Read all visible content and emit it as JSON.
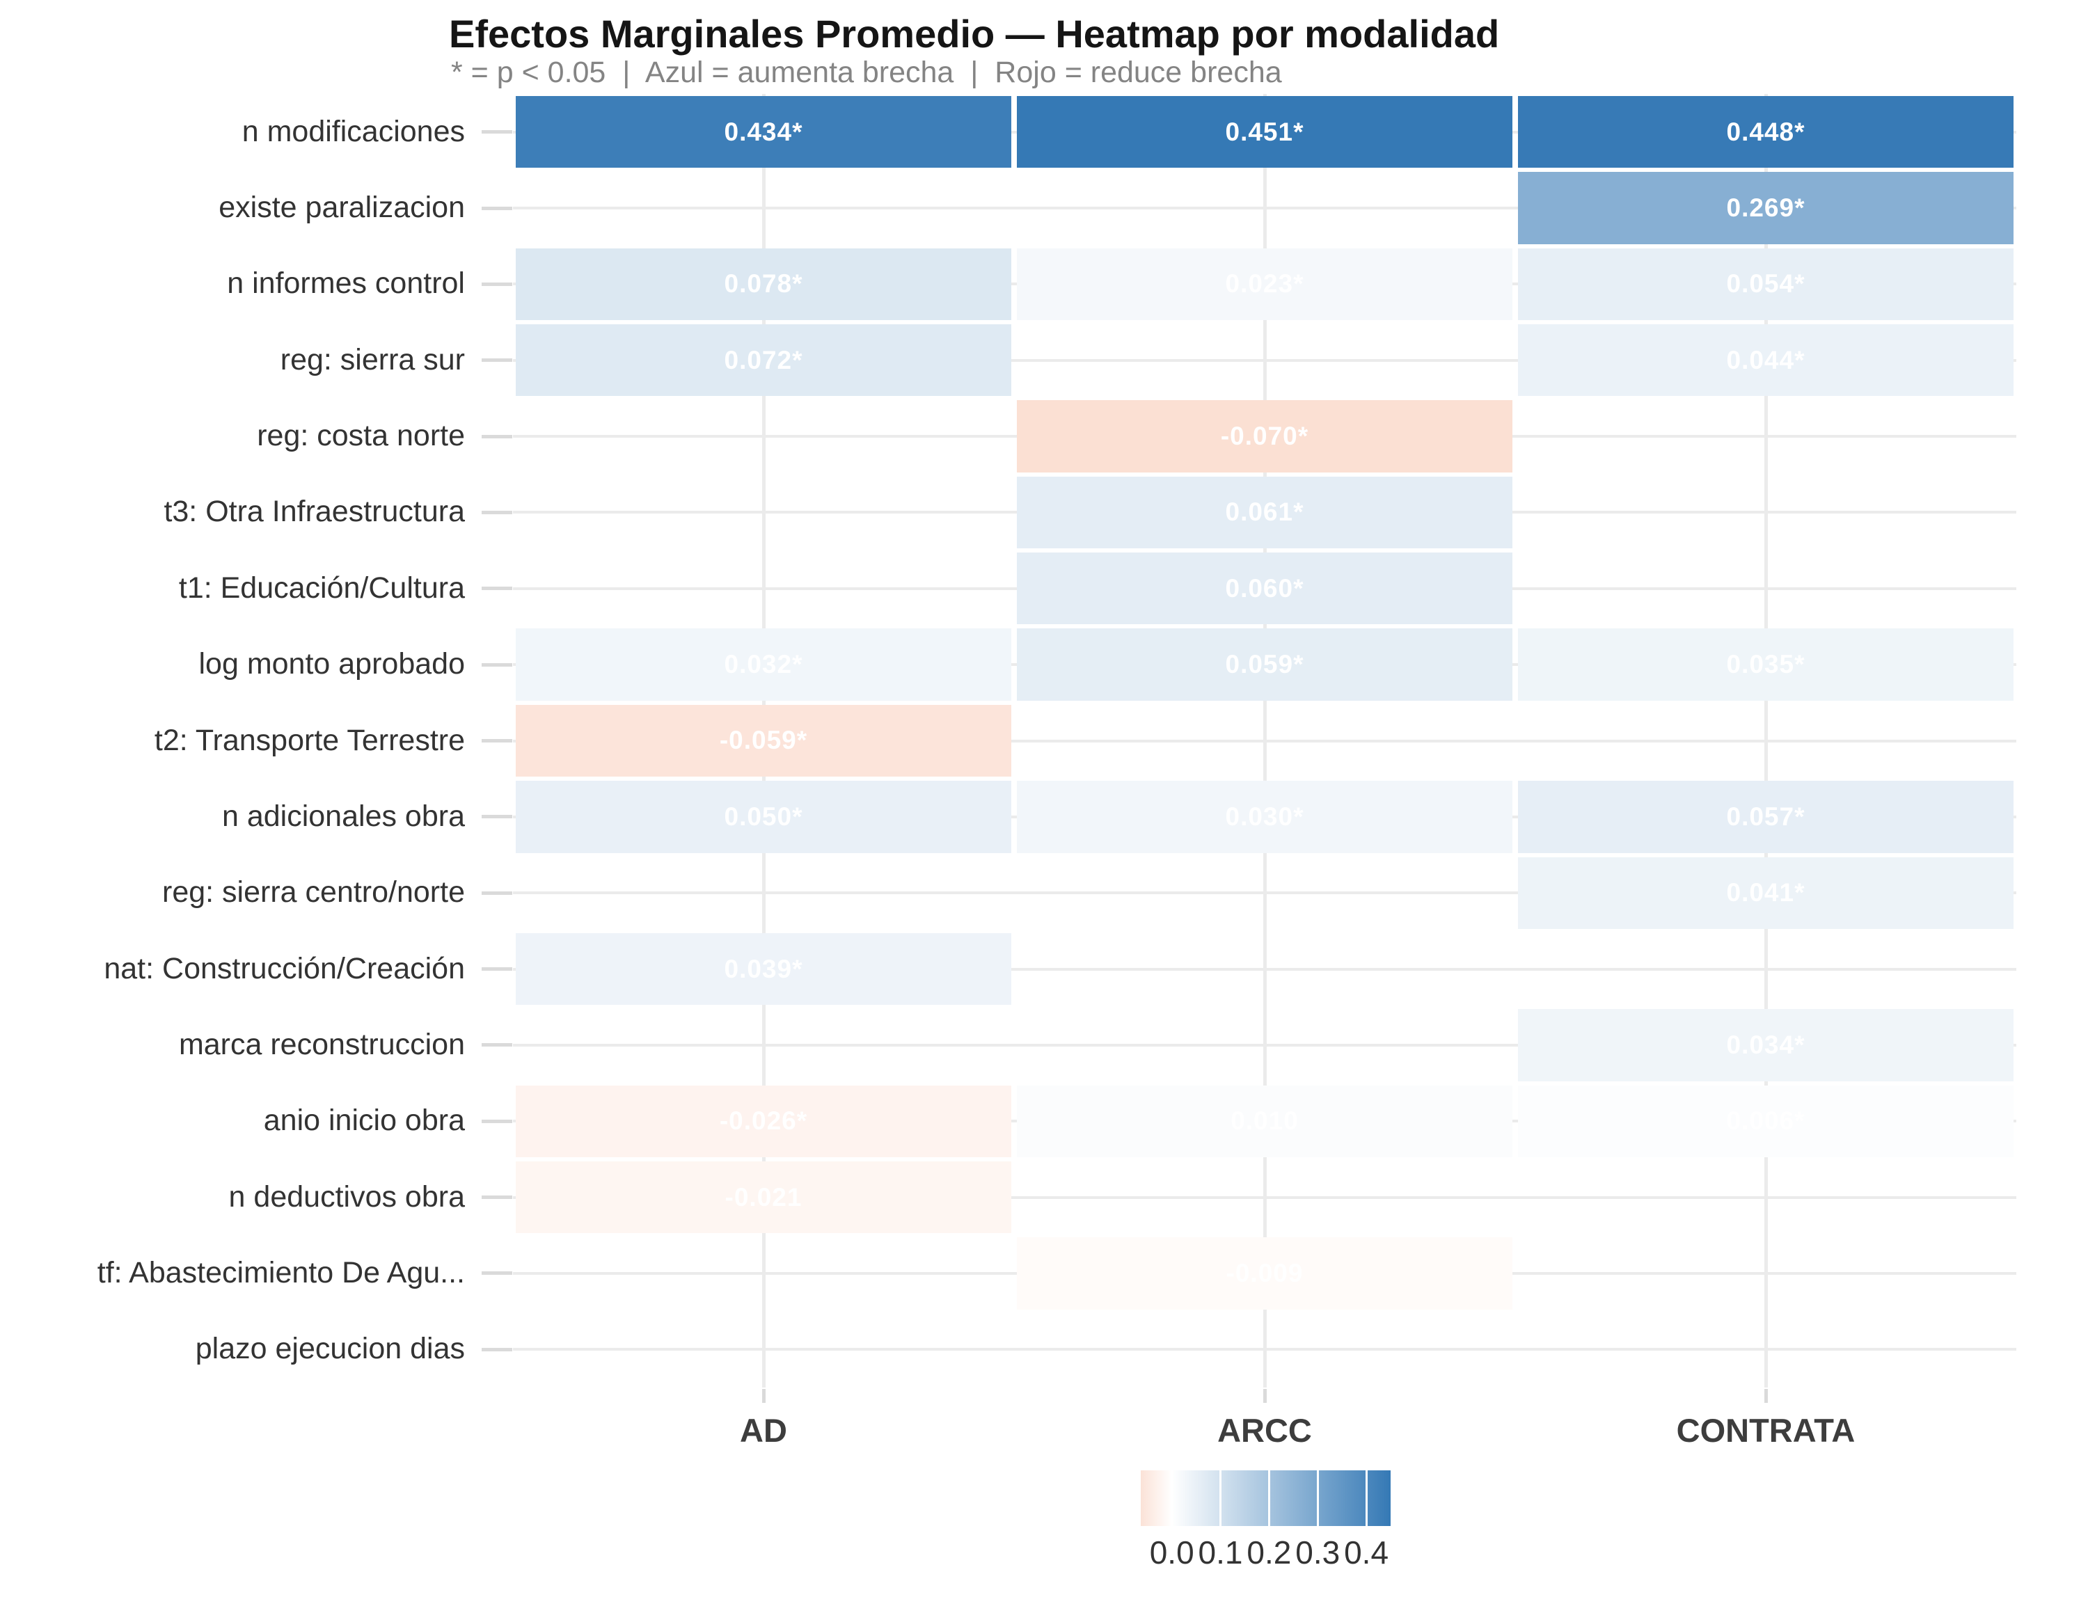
{
  "title": "Efectos Marginales Promedio — Heatmap por modalidad",
  "subtitle": "* = p < 0.05  |  Azul = aumenta brecha  |  Rojo = reduce brecha",
  "chart_data": {
    "type": "heatmap",
    "title": "Efectos Marginales Promedio — Heatmap por modalidad",
    "subtitle": "* = p < 0.05 | Azul = aumenta brecha | Rojo = reduce brecha",
    "x_categories": [
      "AD",
      "ARCC",
      "CONTRATA"
    ],
    "y_categories": [
      "n modificaciones",
      "existe paralizacion",
      "n informes control",
      "reg: sierra sur",
      "reg: costa norte",
      "t3: Otra Infraestructura",
      "t1: Educación/Cultura",
      "log monto aprobado",
      "t2: Transporte Terrestre",
      "n adicionales obra",
      "reg: sierra centro/norte",
      "nat: Construcción/Creación",
      "marca reconstruccion",
      "anio inicio obra",
      "n deductivos obra",
      "tf: Abastecimiento De Agu...",
      "plazo ejecucion dias"
    ],
    "rows": [
      {
        "label": "n modificaciones",
        "cells": [
          {
            "text": "0.434*",
            "v": 0.434
          },
          {
            "text": "0.451*",
            "v": 0.451
          },
          {
            "text": "0.448*",
            "v": 0.448
          }
        ]
      },
      {
        "label": "existe paralizacion",
        "cells": [
          null,
          null,
          {
            "text": "0.269*",
            "v": 0.269
          }
        ]
      },
      {
        "label": "n informes control",
        "cells": [
          {
            "text": "0.078*",
            "v": 0.078
          },
          {
            "text": "0.023*",
            "v": 0.023
          },
          {
            "text": "0.054*",
            "v": 0.054
          }
        ]
      },
      {
        "label": "reg: sierra sur",
        "cells": [
          {
            "text": "0.072*",
            "v": 0.072
          },
          null,
          {
            "text": "0.044*",
            "v": 0.044
          }
        ]
      },
      {
        "label": "reg: costa norte",
        "cells": [
          null,
          {
            "text": "-0.070*",
            "v": -0.07
          },
          null
        ]
      },
      {
        "label": "t3: Otra Infraestructura",
        "cells": [
          null,
          {
            "text": "0.061*",
            "v": 0.061
          },
          null
        ]
      },
      {
        "label": "t1: Educación/Cultura",
        "cells": [
          null,
          {
            "text": "0.060*",
            "v": 0.06
          },
          null
        ]
      },
      {
        "label": "log monto aprobado",
        "cells": [
          {
            "text": "0.032*",
            "v": 0.032
          },
          {
            "text": "0.059*",
            "v": 0.059
          },
          {
            "text": "0.035*",
            "v": 0.035
          }
        ]
      },
      {
        "label": "t2: Transporte Terrestre",
        "cells": [
          {
            "text": "-0.059*",
            "v": -0.059
          },
          null,
          null
        ]
      },
      {
        "label": "n adicionales obra",
        "cells": [
          {
            "text": "0.050*",
            "v": 0.05
          },
          {
            "text": "0.030*",
            "v": 0.03
          },
          {
            "text": "0.057*",
            "v": 0.057
          }
        ]
      },
      {
        "label": "reg: sierra centro/norte",
        "cells": [
          null,
          null,
          {
            "text": "0.041*",
            "v": 0.041
          }
        ]
      },
      {
        "label": "nat: Construcción/Creación",
        "cells": [
          {
            "text": "0.039*",
            "v": 0.039
          },
          null,
          null
        ]
      },
      {
        "label": "marca reconstruccion",
        "cells": [
          null,
          null,
          {
            "text": "0.034*",
            "v": 0.034
          }
        ]
      },
      {
        "label": "anio inicio obra",
        "cells": [
          {
            "text": "-0.026*",
            "v": -0.026
          },
          {
            "text": "0.010",
            "v": 0.01
          },
          {
            "text": "0.006*",
            "v": 0.006
          }
        ]
      },
      {
        "label": "n deductivos obra",
        "cells": [
          {
            "text": "-0.021",
            "v": -0.021
          },
          null,
          null
        ]
      },
      {
        "label": "tf: Abastecimiento De Agu...",
        "cells": [
          null,
          {
            "text": "-0.009",
            "v": -0.009
          },
          null
        ]
      },
      {
        "label": "plazo ejecucion dias",
        "cells": [
          null,
          null,
          null
        ]
      }
    ],
    "palette": {
      "positive_end": "#3579b5",
      "negative_ramp": "#f4a582",
      "legend_left_edge": "#fbe2d7",
      "midpoint": "#ffffff",
      "gridline": "#ebebeb",
      "tick": "#dadada"
    },
    "legend": {
      "tick_labels": [
        "0.0",
        "0.1",
        "0.2",
        "0.3",
        "0.4"
      ],
      "tick_values": [
        0.0,
        0.1,
        0.2,
        0.3,
        0.4
      ],
      "min": -0.064,
      "max": 0.45,
      "position": "bottom"
    },
    "value_range_positive_max": 0.452,
    "value_range_negative_saturation": -0.2,
    "grid": true
  }
}
